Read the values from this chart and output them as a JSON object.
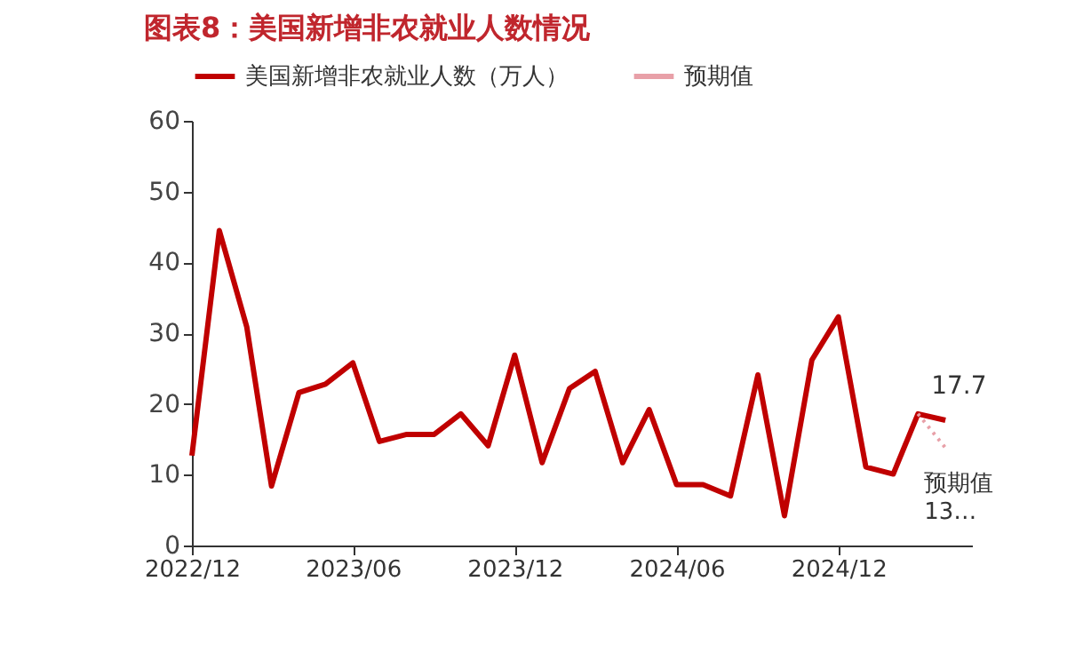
{
  "chart_data": {
    "type": "line",
    "title": "图表8：美国新增非农就业人数情况",
    "x": [
      "2022-12",
      "2023-01",
      "2023-02",
      "2023-03",
      "2023-04",
      "2023-05",
      "2023-06",
      "2023-07",
      "2023-08",
      "2023-09",
      "2023-10",
      "2023-11",
      "2023-12",
      "2024-01",
      "2024-02",
      "2024-03",
      "2024-04",
      "2024-05",
      "2024-06",
      "2024-07",
      "2024-08",
      "2024-09",
      "2024-10",
      "2024-11",
      "2024-12",
      "2025-01",
      "2025-02",
      "2025-03",
      "2025-04"
    ],
    "series": [
      {
        "name": "美国新增非农就业人数（万人）",
        "color": "#c00000",
        "line_style": "solid",
        "values": [
          12.7,
          44.5,
          30.9,
          8.4,
          21.6,
          22.8,
          25.8,
          14.7,
          15.7,
          15.7,
          18.6,
          14.1,
          26.9,
          11.7,
          22.2,
          24.6,
          11.7,
          19.2,
          8.6,
          8.6,
          7.0,
          24.1,
          4.2,
          26.2,
          32.3,
          11.1,
          10.1,
          18.6,
          17.7
        ],
        "value_labels": [
          null,
          null,
          null,
          null,
          null,
          null,
          null,
          null,
          null,
          null,
          null,
          null,
          null,
          null,
          null,
          null,
          null,
          null,
          null,
          null,
          null,
          null,
          null,
          null,
          null,
          null,
          null,
          null,
          "17.7"
        ]
      },
      {
        "name": "预期值",
        "color": "#e8a0a8",
        "line_style": "dotted",
        "x": [
          "2025-03",
          "2025-04"
        ],
        "values": [
          18.6,
          13.8
        ],
        "value_labels": [
          null,
          "预期值\n13…"
        ]
      }
    ],
    "xlim": [
      "2022-12",
      "2025-05"
    ],
    "xticks": [
      {
        "value": "2022-12",
        "label": "2022/12"
      },
      {
        "value": "2023-06",
        "label": "2023/06"
      },
      {
        "value": "2023-12",
        "label": "2023/12"
      },
      {
        "value": "2024-06",
        "label": "2024/06"
      },
      {
        "value": "2024-12",
        "label": "2024/12"
      }
    ],
    "ylim": [
      0,
      60
    ],
    "yticks": [
      0,
      10,
      20,
      30,
      40,
      50,
      60
    ],
    "grid": false,
    "legend": "top",
    "marker": "none"
  }
}
